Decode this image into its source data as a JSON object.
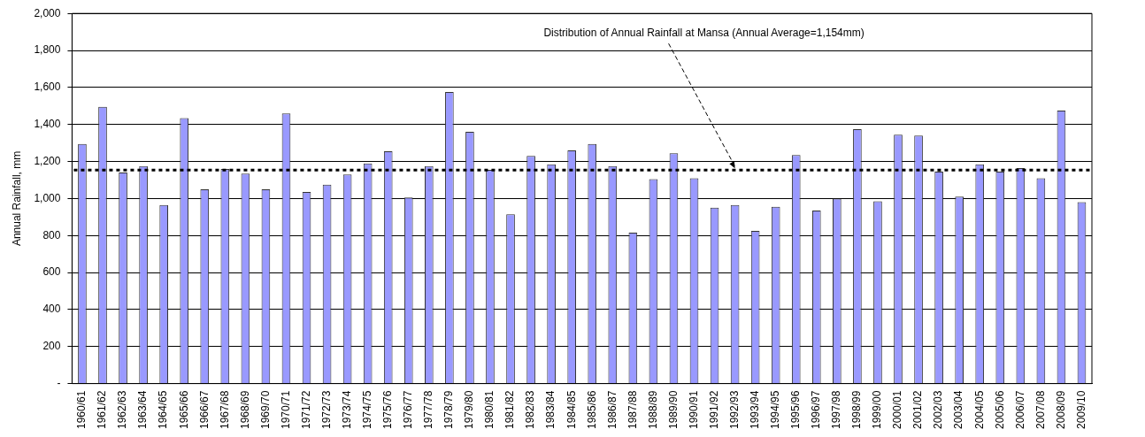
{
  "chart_data": {
    "type": "bar",
    "ylabel": "Annual Rainfall, mm",
    "categories": [
      "1960/61",
      "1961/62",
      "1962/63",
      "1963/64",
      "1964/65",
      "1965/66",
      "1966/67",
      "1967/68",
      "1968/69",
      "1969/70",
      "1970/71",
      "1971/72",
      "1972/73",
      "1973/74",
      "1974/75",
      "1975/76",
      "1976/77",
      "1977/78",
      "1978/79",
      "1979/80",
      "1980/81",
      "1981/82",
      "1982/83",
      "1983/84",
      "1984/85",
      "1985/86",
      "1986/87",
      "1987/88",
      "1988/89",
      "1989/90",
      "1990/91",
      "1991/92",
      "1992/93",
      "1993/94",
      "1994/95",
      "1995/96",
      "1996/97",
      "1997/98",
      "1998/99",
      "1999/00",
      "2000/01",
      "2001/02",
      "2002/03",
      "2003/04",
      "2004/05",
      "2005/06",
      "2006/07",
      "2007/08",
      "2008/09",
      "2009/10"
    ],
    "values": [
      1295,
      1495,
      1140,
      1175,
      965,
      1435,
      1050,
      1160,
      1135,
      1050,
      1460,
      1035,
      1075,
      1130,
      1190,
      1255,
      1005,
      1175,
      1575,
      1360,
      1155,
      915,
      1230,
      1185,
      1260,
      1295,
      1175,
      815,
      1105,
      1245,
      1110,
      950,
      965,
      825,
      955,
      1235,
      935,
      1000,
      1375,
      985,
      1345,
      1340,
      1145,
      1010,
      1185,
      1145,
      1165,
      1110,
      1475,
      980
    ],
    "color": "#9999ff",
    "ylim": [
      0,
      2000
    ],
    "yticks": [
      {
        "value": 0,
        "label": "-"
      },
      {
        "value": 200,
        "label": "200"
      },
      {
        "value": 400,
        "label": "400"
      },
      {
        "value": 600,
        "label": "600"
      },
      {
        "value": 800,
        "label": "800"
      },
      {
        "value": 1000,
        "label": "1,000"
      },
      {
        "value": 1200,
        "label": "1,200"
      },
      {
        "value": 1400,
        "label": "1,400"
      },
      {
        "value": 1600,
        "label": "1,600"
      },
      {
        "value": 1800,
        "label": "1,800"
      },
      {
        "value": 2000,
        "label": "2,000"
      }
    ],
    "grid": "y",
    "ref_lines": [
      {
        "axis": "y",
        "value": 1154,
        "color": "#000000",
        "line_style": "dotted"
      }
    ],
    "annotations": [
      {
        "text": "Distribution of Annual Rainfall at Mansa (Annual Average=1,154mm)",
        "x": "1992/93",
        "y": 1154
      }
    ]
  }
}
